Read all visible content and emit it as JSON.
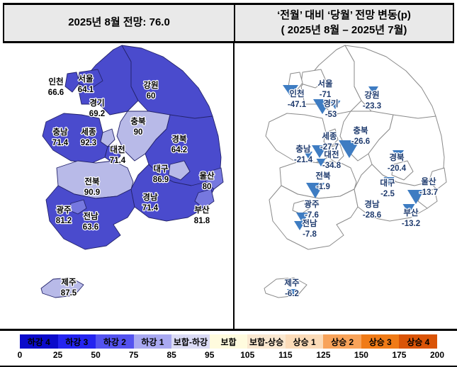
{
  "header": {
    "left_title": "2025년 8월 전망: 76.0",
    "right_title_line1": "‘전월’ 대비 ‘당월’ 전망 변동(p)",
    "right_title_line2": "( 2025년 8월 –  2025년 7월)"
  },
  "left_map": {
    "regions": [
      {
        "name": "인천",
        "value": "66.6"
      },
      {
        "name": "서울",
        "value": "64.1"
      },
      {
        "name": "경기",
        "value": "69.2"
      },
      {
        "name": "강원",
        "value": "60"
      },
      {
        "name": "충북",
        "value": "90"
      },
      {
        "name": "세종",
        "value": "92.3"
      },
      {
        "name": "충남",
        "value": "71.4"
      },
      {
        "name": "대전",
        "value": "71.4"
      },
      {
        "name": "경북",
        "value": "64.2"
      },
      {
        "name": "대구",
        "value": "86.9"
      },
      {
        "name": "울산",
        "value": "80"
      },
      {
        "name": "전북",
        "value": "90.9"
      },
      {
        "name": "경남",
        "value": "71.4"
      },
      {
        "name": "광주",
        "value": "81.2"
      },
      {
        "name": "전남",
        "value": "63.6"
      },
      {
        "name": "부산",
        "value": "81.8"
      },
      {
        "name": "제주",
        "value": "87.5"
      }
    ]
  },
  "right_map": {
    "regions": [
      {
        "name": "인천",
        "value": "-47.1"
      },
      {
        "name": "서울",
        "value": "-71"
      },
      {
        "name": "경기",
        "value": "-53"
      },
      {
        "name": "강원",
        "value": "-23.3"
      },
      {
        "name": "충북",
        "value": "-26.6"
      },
      {
        "name": "세종",
        "value": "-27.7"
      },
      {
        "name": "충남",
        "value": "-21.4"
      },
      {
        "name": "대전",
        "value": "-34.8"
      },
      {
        "name": "경북",
        "value": "-20.4"
      },
      {
        "name": "대구",
        "value": "-2.5"
      },
      {
        "name": "울산",
        "value": "-13.7"
      },
      {
        "name": "전북",
        "value": "-1.9"
      },
      {
        "name": "경남",
        "value": "-28.6"
      },
      {
        "name": "광주",
        "value": "-7.6"
      },
      {
        "name": "전남",
        "value": "-7.8"
      },
      {
        "name": "부산",
        "value": "-13.2"
      },
      {
        "name": "제주",
        "value": "-6.2"
      }
    ]
  },
  "legend": {
    "segments": [
      {
        "label": "하강 4",
        "color": "#0A0ACB"
      },
      {
        "label": "하강 3",
        "color": "#2424F0"
      },
      {
        "label": "하강 2",
        "color": "#5453EF"
      },
      {
        "label": "하강 1",
        "color": "#A9A9F1"
      },
      {
        "label": "보합-하강",
        "color": "#DBDBF5"
      },
      {
        "label": "보합",
        "color": "#FFFBDE"
      },
      {
        "label": "보합-상승",
        "color": "#FAE8D0"
      },
      {
        "label": "상승 1",
        "color": "#FBDBB8"
      },
      {
        "label": "상승 2",
        "color": "#F8A35A"
      },
      {
        "label": "상승 3",
        "color": "#F07B17"
      },
      {
        "label": "상승 4",
        "color": "#DA5407"
      }
    ],
    "ticks": [
      "0",
      "25",
      "50",
      "75",
      "85",
      "95",
      "105",
      "115",
      "125",
      "150",
      "175",
      "200"
    ]
  },
  "map_colors": {
    "band_50_75": "#4A4BCD",
    "band_75_85": "#7678DF",
    "band_85_95": "#B8BAE8",
    "outline_left": "#23236B",
    "outline_right": "#8A8A8A",
    "right_fill": "#FFFFFF",
    "triangle": "#3E7CC2",
    "right_text": "#1F3B6E",
    "left_text": "#000000"
  },
  "chart_data": {
    "type": "heatmap",
    "subtype": "choropleth-map-pair-south-korea",
    "title_left": "2025년 8월 전망: 76.0",
    "title_right": "‘전월’ 대비 ‘당월’ 전망 변동(p) ( 2025년 8월 – 2025년 7월)",
    "categories": [
      "인천",
      "서울",
      "경기",
      "강원",
      "충북",
      "세종",
      "충남",
      "대전",
      "경북",
      "대구",
      "울산",
      "전북",
      "경남",
      "광주",
      "전남",
      "부산",
      "제주"
    ],
    "series": [
      {
        "name": "2025년 8월 전망",
        "values": [
          66.6,
          64.1,
          69.2,
          60,
          90,
          92.3,
          71.4,
          71.4,
          64.2,
          86.9,
          80,
          90.9,
          71.4,
          81.2,
          63.6,
          81.8,
          87.5
        ]
      },
      {
        "name": "전월 대비 당월 전망 변동(p)",
        "values": [
          -47.1,
          -71,
          -53,
          -23.3,
          -26.6,
          -27.7,
          -21.4,
          -34.8,
          -20.4,
          -2.5,
          -13.7,
          -1.9,
          -28.6,
          -7.6,
          -7.8,
          -13.2,
          -6.2
        ]
      }
    ],
    "national_value": 76.0,
    "color_scale_breaks": [
      0,
      25,
      50,
      75,
      85,
      95,
      105,
      115,
      125,
      150,
      175,
      200
    ],
    "color_scale_labels": [
      "하강 4",
      "하강 3",
      "하강 2",
      "하강 1",
      "보합-하강",
      "보합",
      "보합-상승",
      "상승 1",
      "상승 2",
      "상승 3",
      "상승 4"
    ],
    "legend_position": "bottom"
  }
}
